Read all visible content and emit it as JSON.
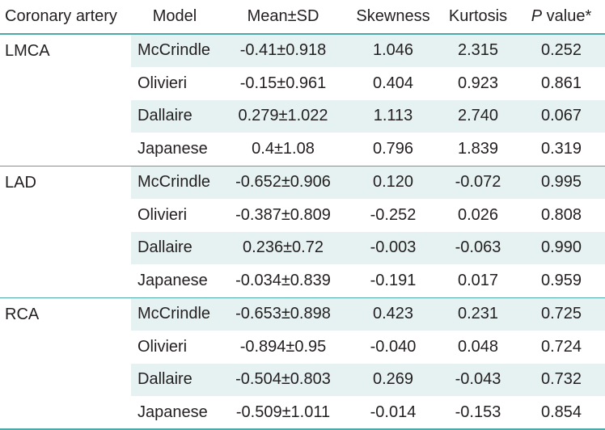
{
  "headers": {
    "artery": "Coronary artery",
    "model": "Model",
    "mean_sd": "Mean±SD",
    "skewness": "Skewness",
    "kurtosis": "Kurtosis",
    "p_letter": "P",
    "p_rest": " value*"
  },
  "groups": [
    {
      "artery": "LMCA",
      "rows": [
        {
          "model": "McCrindle",
          "mean_sd": "-0.41±0.918",
          "skewness": "1.046",
          "kurtosis": "2.315",
          "p": "0.252"
        },
        {
          "model": "Olivieri",
          "mean_sd": "-0.15±0.961",
          "skewness": "0.404",
          "kurtosis": "0.923",
          "p": "0.861"
        },
        {
          "model": "Dallaire",
          "mean_sd": "0.279±1.022",
          "skewness": "1.113",
          "kurtosis": "2.740",
          "p": "0.067"
        },
        {
          "model": "Japanese",
          "mean_sd": "0.4±1.08",
          "skewness": "0.796",
          "kurtosis": "1.839",
          "p": "0.319"
        }
      ]
    },
    {
      "artery": "LAD",
      "rows": [
        {
          "model": "McCrindle",
          "mean_sd": "-0.652±0.906",
          "skewness": "0.120",
          "kurtosis": "-0.072",
          "p": "0.995"
        },
        {
          "model": "Olivieri",
          "mean_sd": "-0.387±0.809",
          "skewness": "-0.252",
          "kurtosis": "0.026",
          "p": "0.808"
        },
        {
          "model": "Dallaire",
          "mean_sd": "0.236±0.72",
          "skewness": "-0.003",
          "kurtosis": "-0.063",
          "p": "0.990"
        },
        {
          "model": "Japanese",
          "mean_sd": "-0.034±0.839",
          "skewness": "-0.191",
          "kurtosis": "0.017",
          "p": "0.959"
        }
      ]
    },
    {
      "artery": "RCA",
      "rows": [
        {
          "model": "McCrindle",
          "mean_sd": "-0.653±0.898",
          "skewness": "0.423",
          "kurtosis": "0.231",
          "p": "0.725"
        },
        {
          "model": "Olivieri",
          "mean_sd": "-0.894±0.95",
          "skewness": "-0.040",
          "kurtosis": "0.048",
          "p": "0.724"
        },
        {
          "model": "Dallaire",
          "mean_sd": "-0.504±0.803",
          "skewness": "0.269",
          "kurtosis": "-0.043",
          "p": "0.732"
        },
        {
          "model": "Japanese",
          "mean_sd": "-0.509±1.011",
          "skewness": "-0.014",
          "kurtosis": "-0.153",
          "p": "0.854"
        }
      ]
    }
  ],
  "colors": {
    "rule": "#4fa8a8",
    "stripe": "#e6f2f2",
    "text": "#231f20"
  }
}
